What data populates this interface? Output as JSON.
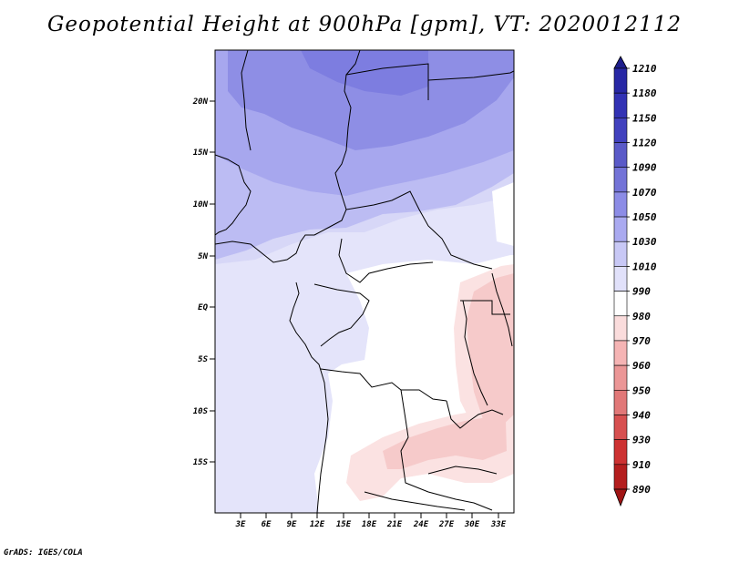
{
  "title": "Geopotential Height at 900hPa [gpm], VT: 2020012112",
  "credit": "GrADS: IGES/COLA",
  "map": {
    "lat_labels": [
      "20N",
      "15N",
      "10N",
      "5N",
      "EQ",
      "5S",
      "10S",
      "15S"
    ],
    "lon_labels": [
      "3E",
      "6E",
      "9E",
      "12E",
      "15E",
      "18E",
      "21E",
      "24E",
      "27E",
      "30E",
      "33E"
    ]
  },
  "colorbar": {
    "levels": [
      "1210",
      "1180",
      "1150",
      "1120",
      "1090",
      "1070",
      "1050",
      "1030",
      "1010",
      "990",
      "980",
      "970",
      "960",
      "950",
      "940",
      "930",
      "910",
      "890"
    ],
    "colors": [
      "#1e1e8c",
      "#2828a5",
      "#3232b4",
      "#4141be",
      "#5a5ac8",
      "#7373d7",
      "#8c8ce6",
      "#aaaaf0",
      "#c8c8f5",
      "#e1e1fa",
      "#ffffff",
      "#fadcdc",
      "#f5b4b4",
      "#eb9696",
      "#e17878",
      "#d75050",
      "#cd3232",
      "#b41e1e",
      "#a01414"
    ]
  }
}
